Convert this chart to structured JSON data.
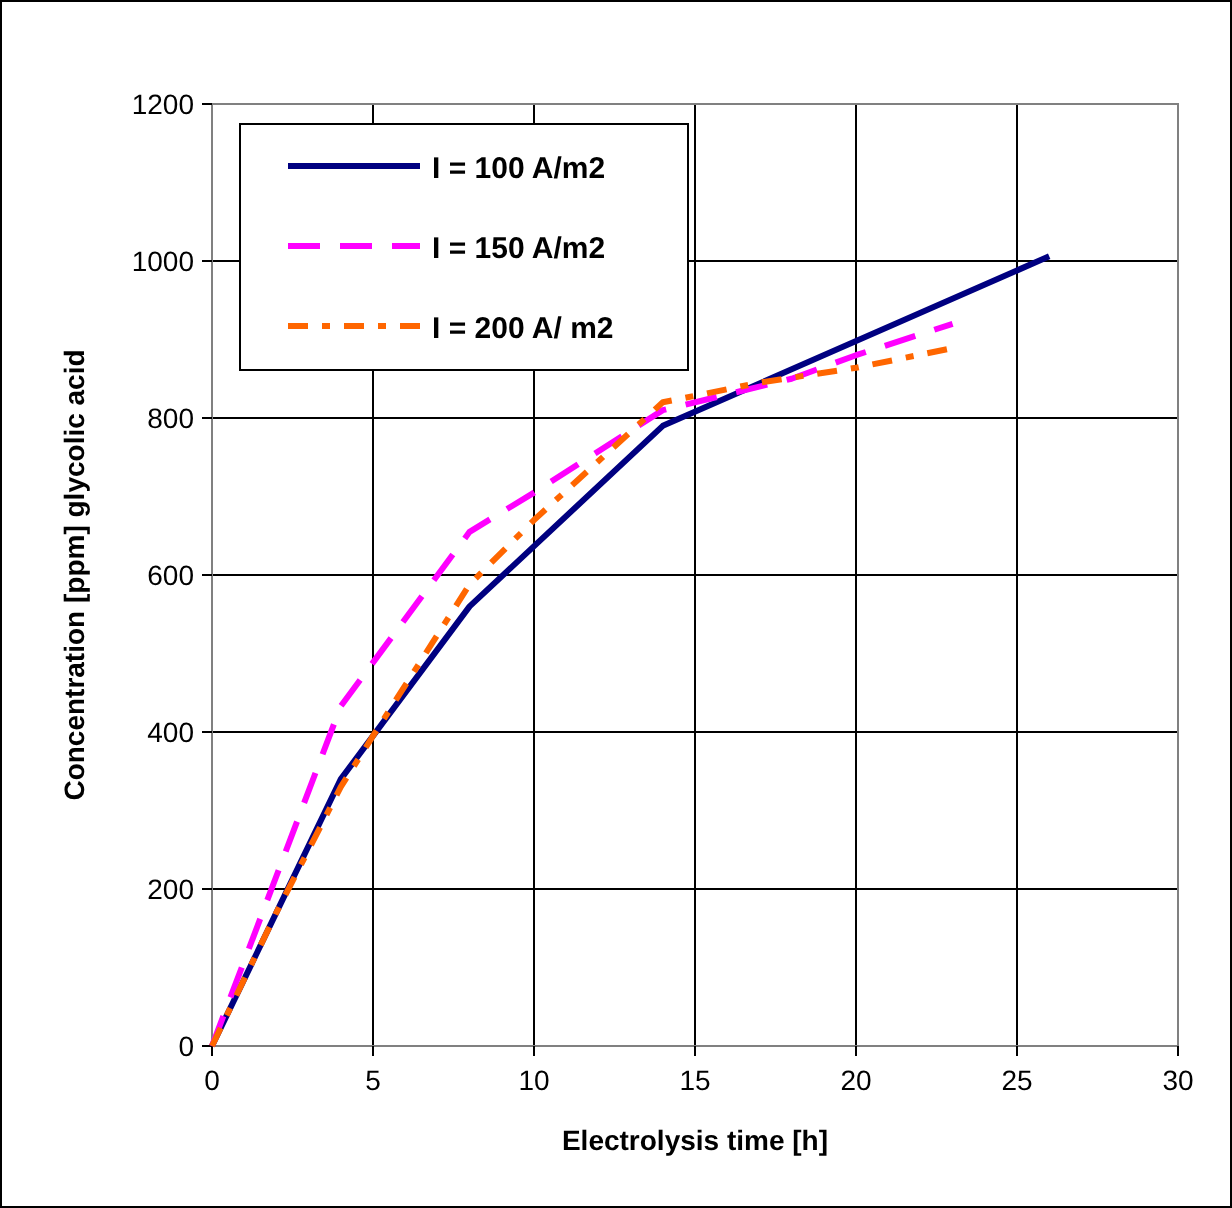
{
  "chart_data": {
    "type": "line",
    "xlabel": "Electrolysis time [h]",
    "ylabel": "Concentration [ppm] glycolic acid",
    "xlim": [
      0,
      30
    ],
    "xticks": [
      0,
      5,
      10,
      15,
      20,
      25,
      30
    ],
    "ylim": [
      0,
      1200
    ],
    "yticks": [
      0,
      200,
      400,
      600,
      800,
      1000,
      1200
    ],
    "grid": true,
    "legend": "top left",
    "marker": "none",
    "series": [
      {
        "name": "I = 100 A/m2",
        "color": "#000080",
        "line_style": "solid",
        "x": [
          0,
          4,
          8,
          14,
          26
        ],
        "values": [
          0,
          340,
          560,
          790,
          1006
        ]
      },
      {
        "name": "I = 150 A/m2",
        "color": "#ff00ff",
        "line_style": "dashed",
        "x": [
          0,
          4,
          8,
          10,
          14,
          18,
          20,
          23
        ],
        "values": [
          0,
          433,
          655,
          705,
          810,
          850,
          880,
          920
        ]
      },
      {
        "name": "I = 200 A/ m2",
        "color": "#ff6600",
        "line_style": "dotted",
        "x": [
          0,
          2,
          4,
          5,
          8,
          10,
          14,
          17,
          20,
          23
        ],
        "values": [
          0,
          170,
          330,
          395,
          588,
          670,
          820,
          845,
          864,
          889
        ]
      }
    ]
  }
}
